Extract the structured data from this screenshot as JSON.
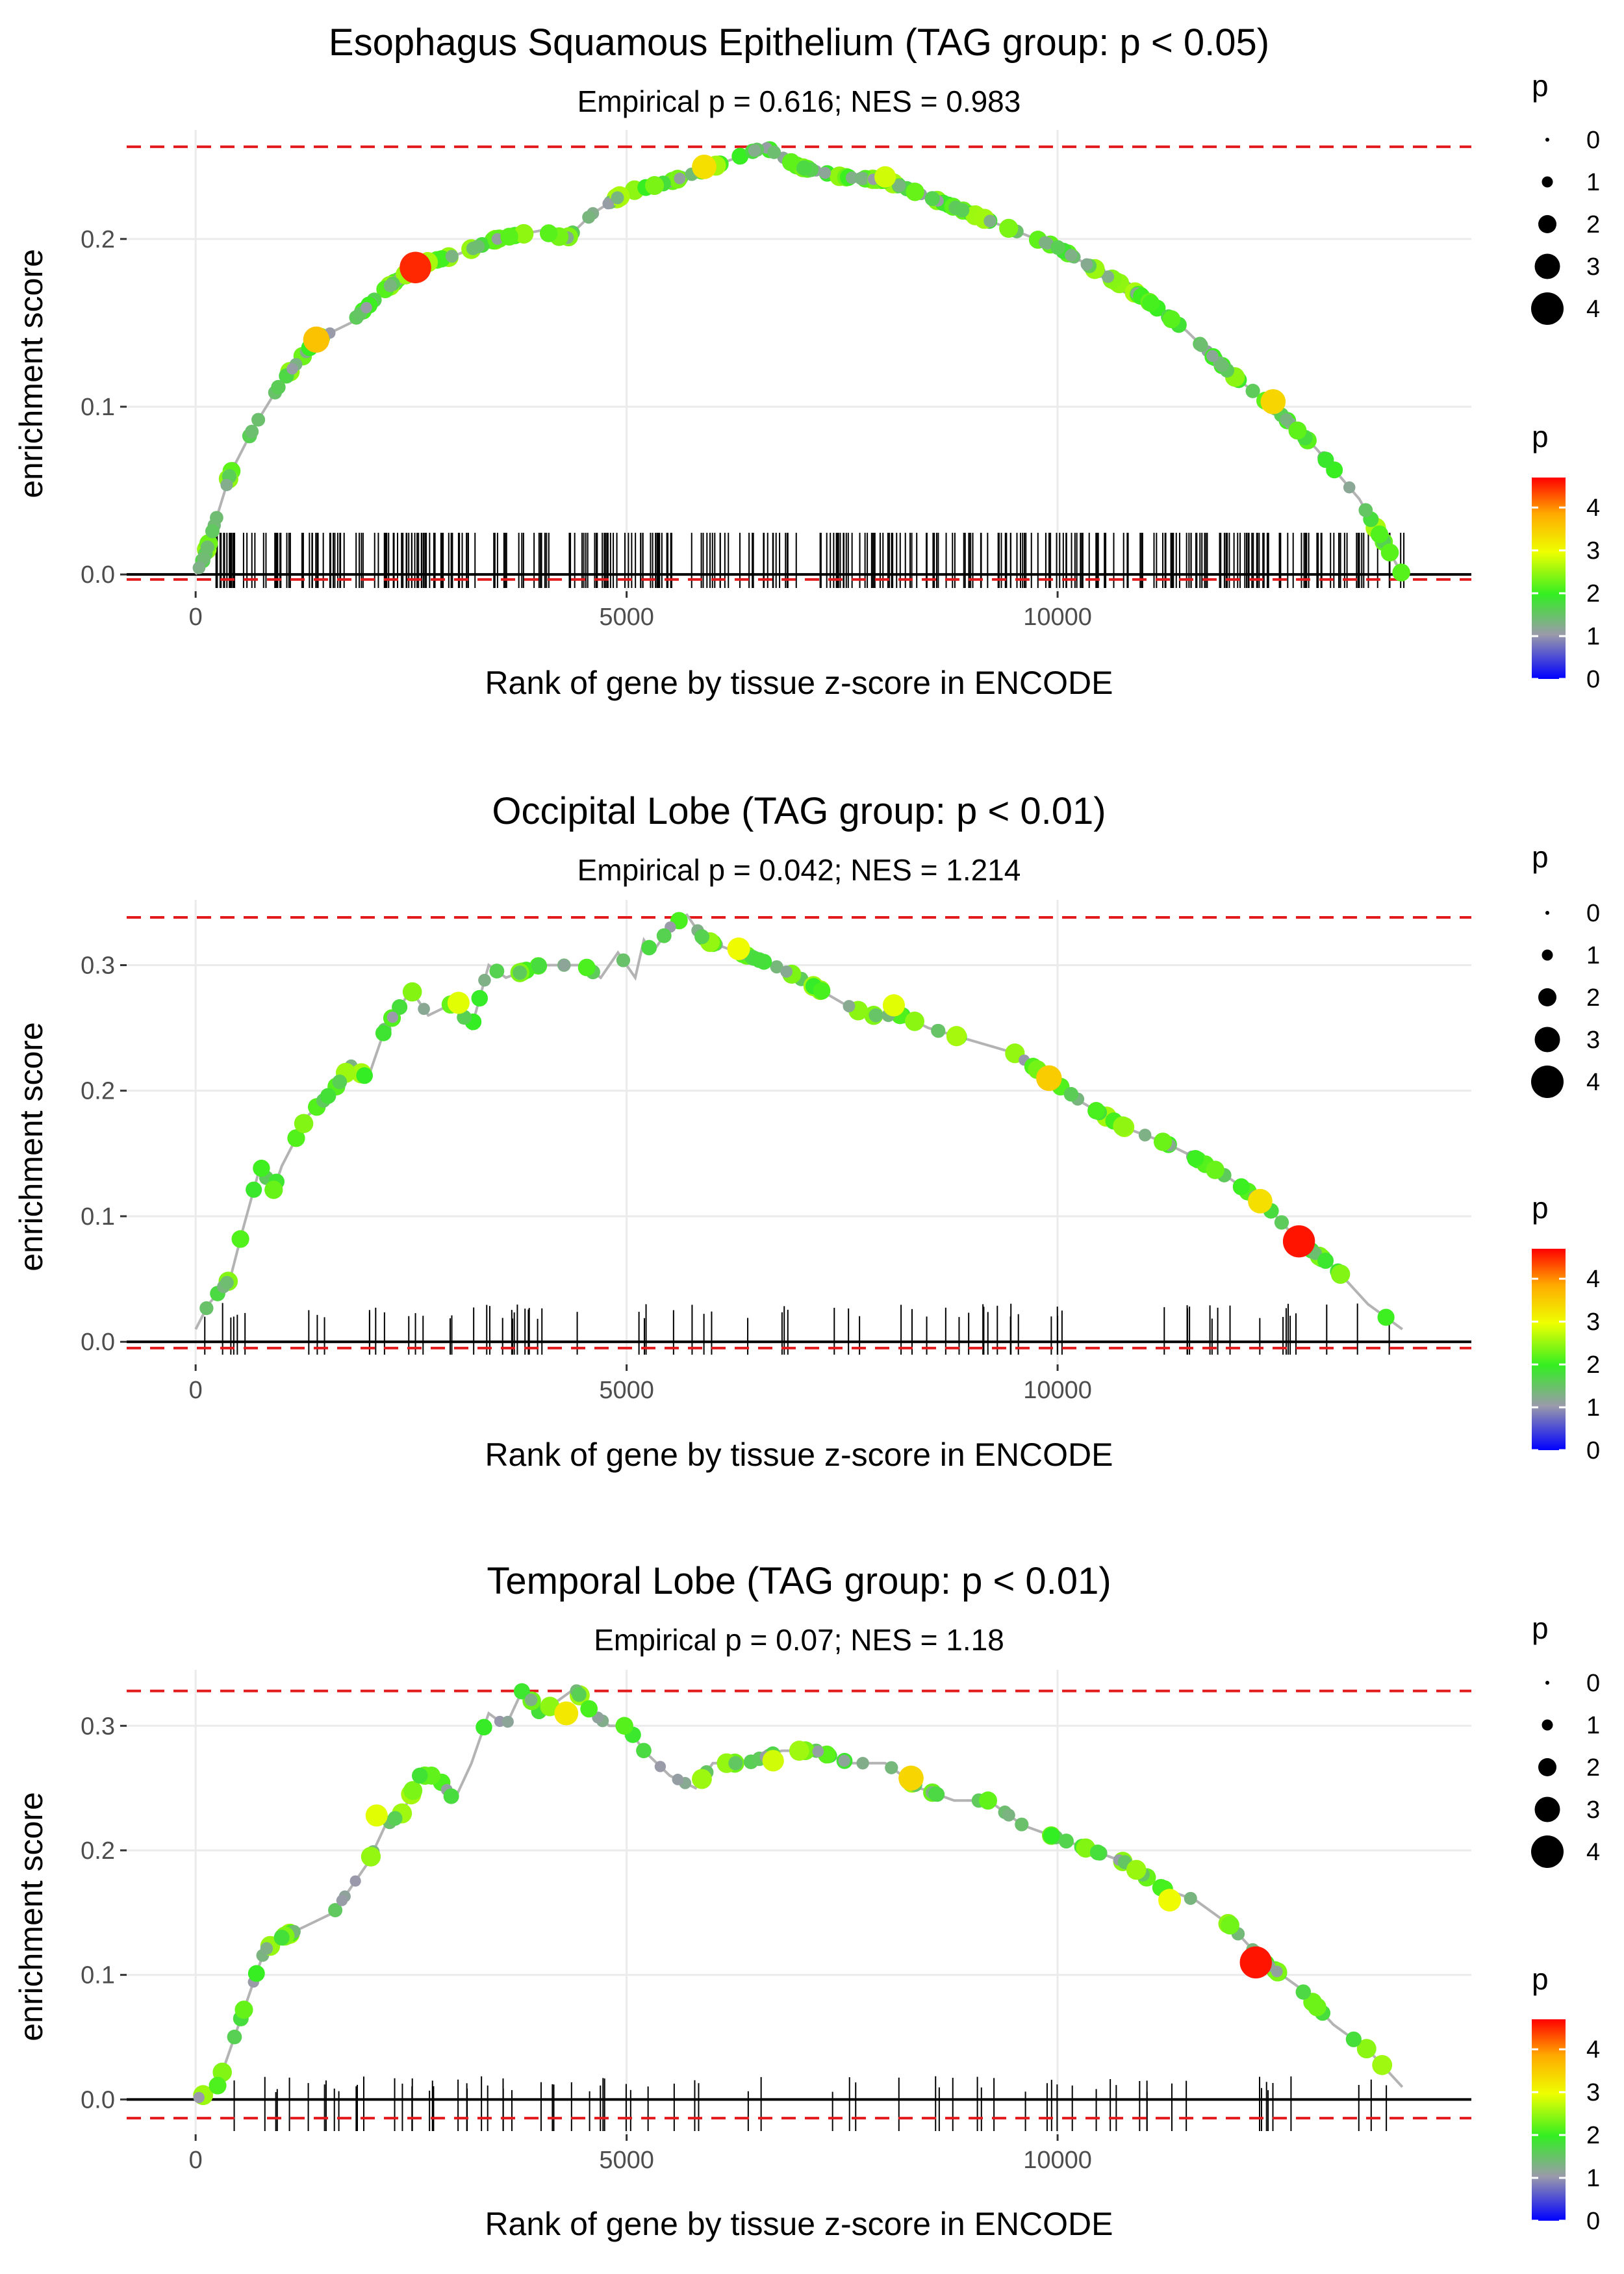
{
  "chart_data": [
    {
      "type": "line",
      "title": "Esophagus Squamous Epithelium (TAG group: p < 0.05)",
      "subtitle": "Empirical p = 0.616; NES = 0.983",
      "xlabel": "Rank of gene by tissue z-score in ENCODE",
      "ylabel": "enrichment score",
      "xlim": [
        -800,
        14800
      ],
      "ylim": [
        -0.01,
        0.265
      ],
      "x_ticks": [
        0,
        5000,
        10000
      ],
      "x_tick_labels": [
        "0",
        "5000",
        "10000"
      ],
      "y_ticks": [
        0.0,
        0.1,
        0.2
      ],
      "y_tick_labels": [
        "0.0",
        "0.1",
        "0.2"
      ],
      "max_es": 0.255,
      "min_es": -0.003,
      "running_es": {
        "x": [
          0,
          100,
          400,
          700,
          1000,
          1400,
          1800,
          2200,
          2600,
          3000,
          3500,
          4000,
          4300,
          4600,
          5000,
          5500,
          6000,
          6600,
          7000,
          7500,
          8000,
          8500,
          9000,
          9500,
          10000,
          10500,
          11000,
          11500,
          12000,
          12500,
          13000,
          13500,
          14000
        ],
        "y": [
          0.0,
          0.01,
          0.06,
          0.09,
          0.115,
          0.14,
          0.15,
          0.17,
          0.185,
          0.19,
          0.2,
          0.205,
          0.2,
          0.215,
          0.228,
          0.234,
          0.243,
          0.255,
          0.243,
          0.237,
          0.235,
          0.225,
          0.215,
          0.205,
          0.195,
          0.18,
          0.165,
          0.145,
          0.12,
          0.1,
          0.075,
          0.045,
          0.0
        ]
      },
      "highlight_points": [
        {
          "x": 2550,
          "y": 0.183,
          "p": 4.5
        },
        {
          "x": 1400,
          "y": 0.14,
          "p": 3.6
        },
        {
          "x": 5900,
          "y": 0.243,
          "p": 3.3
        },
        {
          "x": 12500,
          "y": 0.103,
          "p": 3.4
        },
        {
          "x": 8000,
          "y": 0.237,
          "p": 2.8
        }
      ],
      "hit_density": "dense",
      "hit_range": [
        50,
        14050
      ],
      "hit_gap_frac": 0.15,
      "size_legend": {
        "title": "p",
        "labels": [
          "0",
          "1",
          "2",
          "3",
          "4"
        ]
      },
      "color_legend": {
        "title": "p",
        "labels": [
          "0",
          "1",
          "2",
          "3",
          "4"
        ]
      }
    },
    {
      "type": "line",
      "title": "Occipital Lobe (TAG group: p < 0.01)",
      "subtitle": "Empirical p = 0.042; NES = 1.214",
      "xlabel": "Rank of gene by tissue z-score in ENCODE",
      "ylabel": "enrichment score",
      "xlim": [
        -800,
        14800
      ],
      "ylim": [
        -0.018,
        0.352
      ],
      "x_ticks": [
        0,
        5000,
        10000
      ],
      "x_tick_labels": [
        "0",
        "5000",
        "10000"
      ],
      "y_ticks": [
        0.0,
        0.1,
        0.2,
        0.3
      ],
      "y_tick_labels": [
        "0.0",
        "0.1",
        "0.2",
        "0.3"
      ],
      "max_es": 0.338,
      "min_es": -0.005,
      "running_es": {
        "x": [
          0,
          150,
          400,
          550,
          750,
          900,
          1000,
          1300,
          1600,
          1800,
          2000,
          2200,
          2500,
          2700,
          3000,
          3200,
          3400,
          3600,
          4000,
          4500,
          4700,
          4900,
          5000,
          5100,
          5200,
          5300,
          5500,
          5700,
          5900,
          6300,
          6700,
          7000,
          7500,
          7800,
          8200,
          8500,
          9000,
          9500,
          9900,
          10300,
          10800,
          11200,
          11500,
          12000,
          12400,
          12800,
          13200,
          13600,
          14000
        ],
        "y": [
          0.01,
          0.03,
          0.05,
          0.09,
          0.14,
          0.12,
          0.14,
          0.18,
          0.2,
          0.22,
          0.21,
          0.25,
          0.28,
          0.26,
          0.27,
          0.25,
          0.3,
          0.29,
          0.3,
          0.3,
          0.29,
          0.31,
          0.3,
          0.29,
          0.32,
          0.31,
          0.33,
          0.34,
          0.32,
          0.31,
          0.3,
          0.29,
          0.27,
          0.26,
          0.26,
          0.25,
          0.24,
          0.23,
          0.21,
          0.19,
          0.17,
          0.16,
          0.15,
          0.13,
          0.11,
          0.08,
          0.06,
          0.03,
          0.01
        ]
      },
      "highlight_points": [
        {
          "x": 12800,
          "y": 0.08,
          "p": 4.6
        },
        {
          "x": 9900,
          "y": 0.21,
          "p": 3.5
        },
        {
          "x": 6300,
          "y": 0.313,
          "p": 3.0
        },
        {
          "x": 8100,
          "y": 0.268,
          "p": 2.9
        },
        {
          "x": 3050,
          "y": 0.27,
          "p": 2.9
        },
        {
          "x": 12350,
          "y": 0.112,
          "p": 3.3
        }
      ],
      "hit_density": "medium",
      "hit_range": [
        80,
        13950
      ],
      "hit_gap_frac": 0.45,
      "size_legend": {
        "title": "p",
        "labels": [
          "0",
          "1",
          "2",
          "3",
          "4"
        ]
      },
      "color_legend": {
        "title": "p",
        "labels": [
          "0",
          "1",
          "2",
          "3",
          "4"
        ]
      }
    },
    {
      "type": "line",
      "title": "Temporal Lobe (TAG group: p < 0.01)",
      "subtitle": "Empirical p = 0.07; NES = 1.18",
      "xlabel": "Rank of gene by tissue z-score in ENCODE",
      "ylabel": "enrichment score",
      "xlim": [
        -800,
        14800
      ],
      "ylim": [
        -0.028,
        0.345
      ],
      "x_ticks": [
        0,
        5000,
        10000
      ],
      "x_tick_labels": [
        "0",
        "5000",
        "10000"
      ],
      "y_ticks": [
        0.0,
        0.1,
        0.2,
        0.3
      ],
      "y_tick_labels": [
        "0.0",
        "0.1",
        "0.2",
        "0.3"
      ],
      "max_es": 0.328,
      "min_es": -0.015,
      "running_es": {
        "x": [
          0,
          250,
          400,
          600,
          800,
          1000,
          1300,
          1600,
          1800,
          2000,
          2200,
          2400,
          2600,
          2800,
          3000,
          3200,
          3400,
          3600,
          3800,
          4000,
          4200,
          4400,
          4600,
          4800,
          5000,
          5200,
          5500,
          5800,
          6000,
          6400,
          6800,
          7200,
          7600,
          8000,
          8400,
          8800,
          9200,
          9600,
          10000,
          10400,
          10800,
          11200,
          11600,
          12000,
          12400,
          12800,
          13200,
          13600,
          14000
        ],
        "y": [
          0.0,
          0.01,
          0.04,
          0.08,
          0.12,
          0.13,
          0.14,
          0.15,
          0.17,
          0.19,
          0.22,
          0.23,
          0.26,
          0.26,
          0.24,
          0.27,
          0.31,
          0.3,
          0.33,
          0.31,
          0.32,
          0.33,
          0.31,
          0.3,
          0.3,
          0.28,
          0.26,
          0.25,
          0.27,
          0.27,
          0.28,
          0.28,
          0.27,
          0.27,
          0.25,
          0.24,
          0.24,
          0.22,
          0.21,
          0.2,
          0.19,
          0.17,
          0.16,
          0.14,
          0.11,
          0.09,
          0.06,
          0.04,
          0.01
        ]
      },
      "highlight_points": [
        {
          "x": 12300,
          "y": 0.11,
          "p": 4.6
        },
        {
          "x": 8300,
          "y": 0.258,
          "p": 3.4
        },
        {
          "x": 4300,
          "y": 0.31,
          "p": 3.2
        },
        {
          "x": 11300,
          "y": 0.16,
          "p": 3.0
        },
        {
          "x": 2100,
          "y": 0.228,
          "p": 2.9
        },
        {
          "x": 6700,
          "y": 0.272,
          "p": 2.8
        }
      ],
      "hit_density": "medium",
      "hit_range": [
        300,
        13950
      ],
      "hit_gap_frac": 0.45,
      "size_legend": {
        "title": "p",
        "labels": [
          "0",
          "1",
          "2",
          "3",
          "4"
        ]
      },
      "color_legend": {
        "title": "p",
        "labels": [
          "0",
          "1",
          "2",
          "3",
          "4"
        ]
      }
    }
  ],
  "colors": {
    "line": "#b3b3b3",
    "reference_dashed": "#e31a1c",
    "zero_line": "#000000",
    "grid": "#ebebeb",
    "gradient": [
      "#0000ff",
      "#999999",
      "#33ff00",
      "#ffff00",
      "#ffaa00",
      "#ff0000"
    ]
  }
}
